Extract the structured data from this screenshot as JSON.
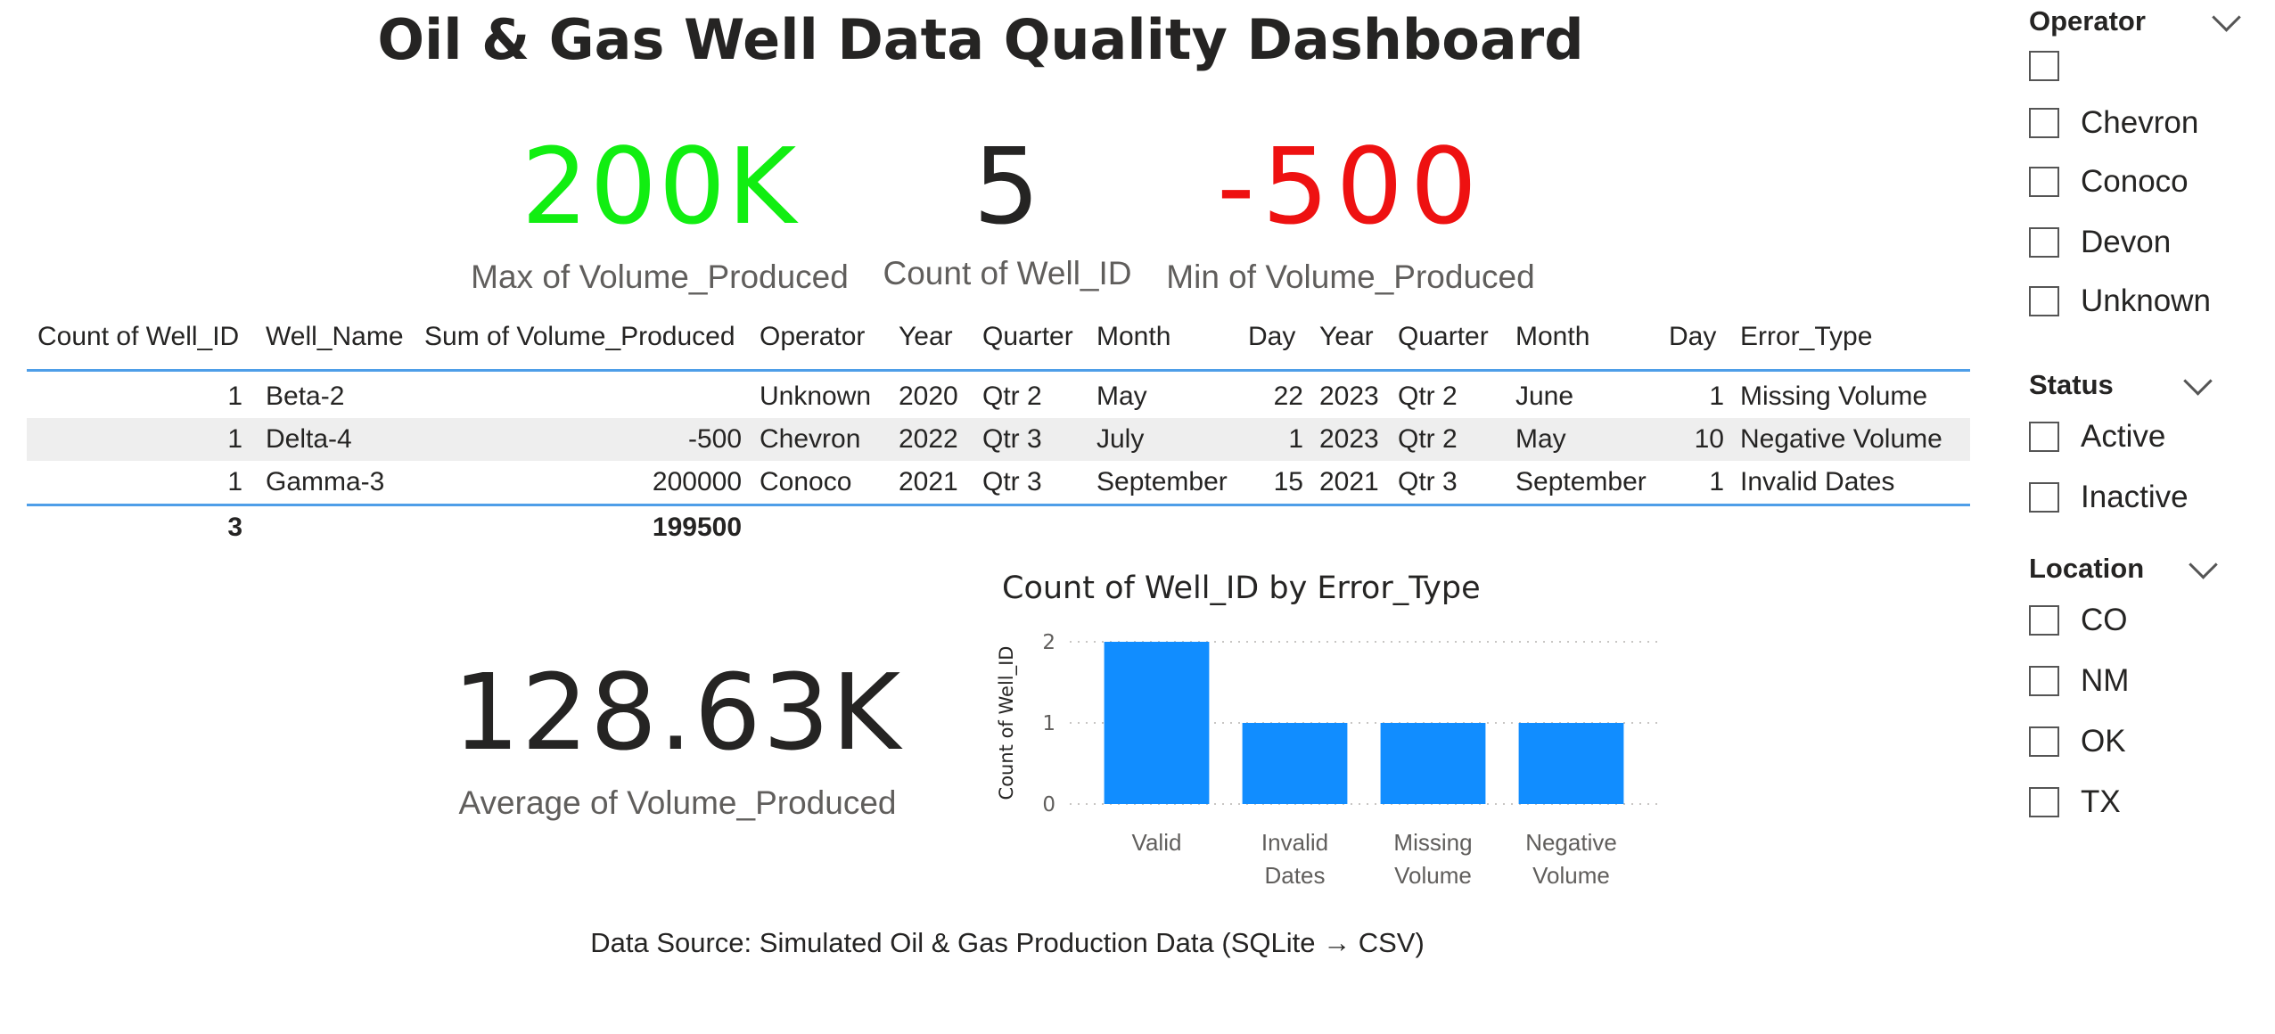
{
  "title": "Oil & Gas Well Data Quality Dashboard",
  "kpis": {
    "max": {
      "value": "200K",
      "label": "Max of Volume_Produced",
      "color": "#11ee11"
    },
    "count": {
      "value": "5",
      "label": "Count of Well_ID",
      "color": "#252423"
    },
    "min": {
      "value": "-500",
      "label": "Min of Volume_Produced",
      "color": "#ee1111"
    },
    "avg": {
      "value": "128.63K",
      "label": "Average of Volume_Produced",
      "color": "#252423"
    }
  },
  "table": {
    "headers": [
      "Count of Well_ID",
      "Well_Name",
      "Sum of Volume_Produced",
      "Operator",
      "Year",
      "Quarter",
      "Month",
      "Day",
      "Year",
      "Quarter",
      "Month",
      "Day",
      "Error_Type"
    ],
    "rows": [
      [
        "1",
        "Beta-2",
        "",
        "Unknown",
        "2020",
        "Qtr 2",
        "May",
        "22",
        "2023",
        "Qtr 2",
        "June",
        "1",
        "Missing Volume"
      ],
      [
        "1",
        "Delta-4",
        "-500",
        "Chevron",
        "2022",
        "Qtr 3",
        "July",
        "1",
        "2023",
        "Qtr 2",
        "May",
        "10",
        "Negative Volume"
      ],
      [
        "1",
        "Gamma-3",
        "200000",
        "Conoco",
        "2021",
        "Qtr 3",
        "September",
        "15",
        "2021",
        "Qtr 3",
        "September",
        "1",
        "Invalid Dates"
      ]
    ],
    "totals": {
      "count": "3",
      "sum": "199500"
    }
  },
  "chart_data": {
    "type": "bar",
    "title": "Count of Well_ID by Error_Type",
    "xlabel": "",
    "ylabel": "Count of Well_ID",
    "categories": [
      "Valid",
      "Invalid Dates",
      "Missing Volume",
      "Negative Volume"
    ],
    "category_lines": [
      [
        "Valid"
      ],
      [
        "Invalid",
        "Dates"
      ],
      [
        "Missing",
        "Volume"
      ],
      [
        "Negative",
        "Volume"
      ]
    ],
    "values": [
      2,
      1,
      1,
      1
    ],
    "ylim": [
      0,
      2
    ],
    "yticks": [
      "0",
      "1",
      "2"
    ],
    "grid": true,
    "bar_color": "#118dff"
  },
  "slicers": {
    "operator": {
      "title": "Operator",
      "items": [
        "",
        "Chevron",
        "Conoco",
        "Devon",
        "Unknown"
      ]
    },
    "status": {
      "title": "Status",
      "items": [
        "Active",
        "Inactive"
      ]
    },
    "location": {
      "title": "Location",
      "items": [
        "CO",
        "NM",
        "OK",
        "TX"
      ]
    }
  },
  "footer": {
    "source": "Data Source: Simulated Oil & Gas Production Data (SQLite → CSV)"
  }
}
